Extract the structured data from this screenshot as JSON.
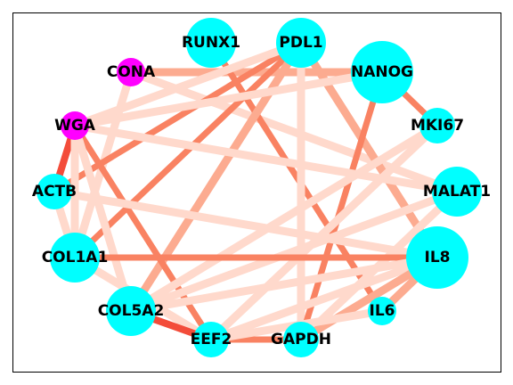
{
  "graph": {
    "nodes": [
      {
        "id": "RUNX1",
        "label": "RUNX1",
        "kind": "gene",
        "size": 3
      },
      {
        "id": "PDL1",
        "label": "PDL1",
        "kind": "gene",
        "size": 3
      },
      {
        "id": "NANOG",
        "label": "NANOG",
        "kind": "gene",
        "size": 4
      },
      {
        "id": "CONA",
        "label": "CONA",
        "kind": "lectin",
        "size": 1
      },
      {
        "id": "MKI67",
        "label": "MKI67",
        "kind": "gene",
        "size": 2
      },
      {
        "id": "WGA",
        "label": "WGA",
        "kind": "lectin",
        "size": 1
      },
      {
        "id": "MALAT1",
        "label": "MALAT1",
        "kind": "gene",
        "size": 3
      },
      {
        "id": "ACTB",
        "label": "ACTB",
        "kind": "gene",
        "size": 2
      },
      {
        "id": "IL8",
        "label": "IL8",
        "kind": "gene",
        "size": 4
      },
      {
        "id": "COL1A1",
        "label": "COL1A1",
        "kind": "gene",
        "size": 3
      },
      {
        "id": "IL6",
        "label": "IL6",
        "kind": "gene",
        "size": 1
      },
      {
        "id": "COL5A2",
        "label": "COL5A2",
        "kind": "gene",
        "size": 3
      },
      {
        "id": "EEF2",
        "label": "EEF2",
        "kind": "gene",
        "size": 2
      },
      {
        "id": "GAPDH",
        "label": "GAPDH",
        "kind": "gene",
        "size": 2
      }
    ],
    "edges": [
      {
        "source": "CONA",
        "target": "NANOG",
        "strength": 2
      },
      {
        "source": "CONA",
        "target": "MALAT1",
        "strength": 1
      },
      {
        "source": "CONA",
        "target": "COL1A1",
        "strength": 1
      },
      {
        "source": "RUNX1",
        "target": "IL6",
        "strength": 3
      },
      {
        "source": "PDL1",
        "target": "ACTB",
        "strength": 3
      },
      {
        "source": "PDL1",
        "target": "COL1A1",
        "strength": 3
      },
      {
        "source": "PDL1",
        "target": "IL8",
        "strength": 2
      },
      {
        "source": "PDL1",
        "target": "GAPDH",
        "strength": 1
      },
      {
        "source": "PDL1",
        "target": "COL5A2",
        "strength": 2
      },
      {
        "source": "PDL1",
        "target": "WGA",
        "strength": 1
      },
      {
        "source": "NANOG",
        "target": "MKI67",
        "strength": 3
      },
      {
        "source": "NANOG",
        "target": "GAPDH",
        "strength": 3
      },
      {
        "source": "NANOG",
        "target": "WGA",
        "strength": 1
      },
      {
        "source": "WGA",
        "target": "ACTB",
        "strength": 4
      },
      {
        "source": "WGA",
        "target": "EEF2",
        "strength": 3
      },
      {
        "source": "WGA",
        "target": "MALAT1",
        "strength": 1
      },
      {
        "source": "WGA",
        "target": "COL1A1",
        "strength": 1
      },
      {
        "source": "WGA",
        "target": "COL5A2",
        "strength": 1
      },
      {
        "source": "MKI67",
        "target": "COL5A2",
        "strength": 1
      },
      {
        "source": "MKI67",
        "target": "EEF2",
        "strength": 1
      },
      {
        "source": "MALAT1",
        "target": "COL5A2",
        "strength": 1
      },
      {
        "source": "MALAT1",
        "target": "GAPDH",
        "strength": 1
      },
      {
        "source": "ACTB",
        "target": "IL8",
        "strength": 1
      },
      {
        "source": "ACTB",
        "target": "COL1A1",
        "strength": 1
      },
      {
        "source": "COL1A1",
        "target": "IL8",
        "strength": 3
      },
      {
        "source": "COL1A1",
        "target": "EEF2",
        "strength": 1
      },
      {
        "source": "IL8",
        "target": "COL5A2",
        "strength": 1
      },
      {
        "source": "IL8",
        "target": "EEF2",
        "strength": 1
      },
      {
        "source": "IL8",
        "target": "GAPDH",
        "strength": 2
      },
      {
        "source": "IL6",
        "target": "IL8",
        "strength": 2
      },
      {
        "source": "COL5A2",
        "target": "EEF2",
        "strength": 4
      },
      {
        "source": "EEF2",
        "target": "GAPDH",
        "strength": 3
      },
      {
        "source": "EEF2",
        "target": "IL6",
        "strength": 1
      }
    ]
  },
  "colors": {
    "gene": "#00ffff",
    "lectin": "#ff00ff",
    "edge_strength_1": "#ffd9cc",
    "edge_strength_2": "#fcab90",
    "edge_strength_3": "#f98262",
    "edge_strength_4": "#f34c3a",
    "frame": "#000000",
    "background": "#ffffff"
  }
}
